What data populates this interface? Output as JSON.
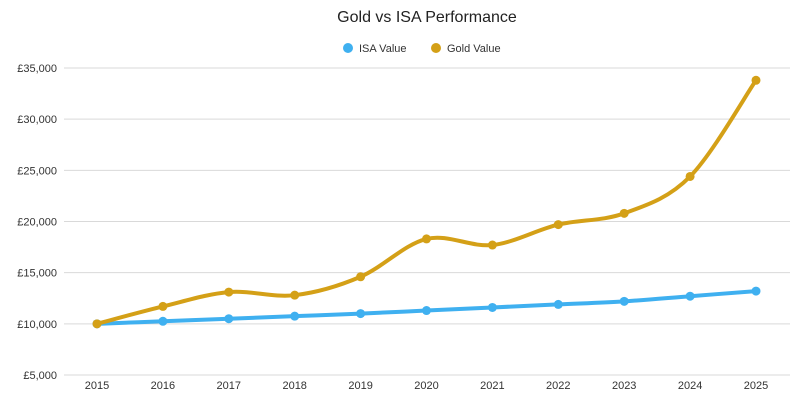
{
  "chart_data": {
    "type": "line",
    "title": "Gold vs ISA Performance",
    "xlabel": "",
    "ylabel": "",
    "categories": [
      "2015",
      "2016",
      "2017",
      "2018",
      "2019",
      "2020",
      "2021",
      "2022",
      "2023",
      "2024",
      "2025"
    ],
    "y_ticks": [
      "£5,000",
      "£10,000",
      "£15,000",
      "£20,000",
      "£25,000",
      "£30,000",
      "£35,000"
    ],
    "ylim": [
      5000,
      35000
    ],
    "grid": true,
    "legend_position": "top-center",
    "series": [
      {
        "name": "ISA Value",
        "color": "#3fb0f0",
        "values": [
          10000,
          10250,
          10500,
          10750,
          11000,
          11300,
          11600,
          11900,
          12200,
          12700,
          13200
        ]
      },
      {
        "name": "Gold Value",
        "color": "#d4a017",
        "values": [
          10000,
          11700,
          13100,
          12800,
          14600,
          18300,
          17700,
          19700,
          20800,
          24400,
          33800
        ]
      }
    ]
  }
}
